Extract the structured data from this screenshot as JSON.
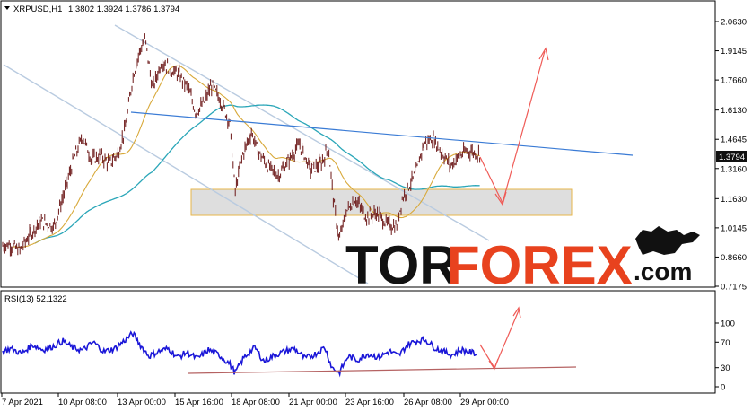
{
  "header": {
    "symbol": "XRPUSD,H1",
    "ohlc": "1.3802 1.3924 1.3786 1.3794"
  },
  "price_axis": {
    "ticks": [
      {
        "label": "2.0630",
        "value": 2.063
      },
      {
        "label": "1.9145",
        "value": 1.9145
      },
      {
        "label": "1.7660",
        "value": 1.766
      },
      {
        "label": "1.6130",
        "value": 1.613
      },
      {
        "label": "1.4645",
        "value": 1.4645
      },
      {
        "label": "1.3160",
        "value": 1.316
      },
      {
        "label": "1.1630",
        "value": 1.163
      },
      {
        "label": "1.0145",
        "value": 1.0145
      },
      {
        "label": "0.8660",
        "value": 0.866
      },
      {
        "label": "0.7175",
        "value": 0.7175
      }
    ],
    "current_price": "1.3794",
    "current_value": 1.3794
  },
  "rsi": {
    "label": "RSI(13) 52.1322",
    "ticks": [
      {
        "label": "100",
        "value": 100
      },
      {
        "label": "70",
        "value": 70
      },
      {
        "label": "30",
        "value": 30
      },
      {
        "label": "0",
        "value": 0
      }
    ]
  },
  "time_axis": [
    "7 Apr 2021",
    "10 Apr 08:00",
    "13 Apr 00:00",
    "15 Apr 16:00",
    "18 Apr 08:00",
    "21 Apr 00:00",
    "23 Apr 16:00",
    "26 Apr 08:00",
    "29 Apr 00:00"
  ],
  "watermark": {
    "part1": "TOR",
    "part2": "FOREX",
    "part3": ".com"
  },
  "colors": {
    "candle_up": "#6b1616",
    "candle_down": "#6b1616",
    "ma_fast": "#d8a93a",
    "ma_slow": "#2aa6b8",
    "trendline": "#3a7bd5",
    "channel": "#b9cbe0",
    "forecast_arrow": "#ef5a56",
    "rsi_line": "#1a16d8",
    "rsi_trendline": "#b56262",
    "support_zone": "#d8d8d8",
    "support_border": "#e7b64a",
    "price_tag_bg": "#111111",
    "axis_text": "#000000",
    "background": "#ffffff"
  },
  "chart_data": {
    "type": "candlestick",
    "price_range": [
      0.7175,
      2.063
    ],
    "rsi_range": [
      0,
      100
    ],
    "price_path": [
      [
        0,
        0.92
      ],
      [
        10,
        0.93
      ],
      [
        22,
        0.9
      ],
      [
        32,
        0.97
      ],
      [
        45,
        1.05
      ],
      [
        60,
        1.02
      ],
      [
        72,
        1.2
      ],
      [
        82,
        1.36
      ],
      [
        92,
        1.48
      ],
      [
        102,
        1.36
      ],
      [
        112,
        1.38
      ],
      [
        122,
        1.34
      ],
      [
        132,
        1.4
      ],
      [
        140,
        1.53
      ],
      [
        148,
        1.78
      ],
      [
        156,
        1.92
      ],
      [
        162,
        1.97
      ],
      [
        170,
        1.72
      ],
      [
        180,
        1.86
      ],
      [
        190,
        1.82
      ],
      [
        200,
        1.79
      ],
      [
        210,
        1.72
      ],
      [
        218,
        1.6
      ],
      [
        226,
        1.64
      ],
      [
        236,
        1.74
      ],
      [
        246,
        1.66
      ],
      [
        256,
        1.55
      ],
      [
        262,
        1.2
      ],
      [
        270,
        1.38
      ],
      [
        280,
        1.5
      ],
      [
        288,
        1.4
      ],
      [
        298,
        1.33
      ],
      [
        310,
        1.28
      ],
      [
        322,
        1.36
      ],
      [
        334,
        1.44
      ],
      [
        346,
        1.31
      ],
      [
        358,
        1.34
      ],
      [
        366,
        1.42
      ],
      [
        372,
        1.14
      ],
      [
        378,
        0.95
      ],
      [
        386,
        1.1
      ],
      [
        396,
        1.16
      ],
      [
        408,
        1.07
      ],
      [
        420,
        1.09
      ],
      [
        432,
        1.03
      ],
      [
        442,
        1.02
      ],
      [
        448,
        1.16
      ],
      [
        456,
        1.23
      ],
      [
        464,
        1.3
      ],
      [
        472,
        1.44
      ],
      [
        482,
        1.47
      ],
      [
        492,
        1.4
      ],
      [
        502,
        1.33
      ],
      [
        512,
        1.38
      ],
      [
        522,
        1.41
      ],
      [
        532,
        1.39
      ]
    ],
    "rsi_path": [
      [
        0,
        54
      ],
      [
        12,
        60
      ],
      [
        24,
        52
      ],
      [
        36,
        66
      ],
      [
        48,
        58
      ],
      [
        60,
        64
      ],
      [
        70,
        72
      ],
      [
        80,
        62
      ],
      [
        92,
        57
      ],
      [
        104,
        70
      ],
      [
        116,
        55
      ],
      [
        128,
        60
      ],
      [
        140,
        74
      ],
      [
        148,
        84
      ],
      [
        156,
        66
      ],
      [
        166,
        48
      ],
      [
        176,
        55
      ],
      [
        188,
        60
      ],
      [
        198,
        46
      ],
      [
        208,
        54
      ],
      [
        220,
        44
      ],
      [
        232,
        58
      ],
      [
        244,
        50
      ],
      [
        256,
        36
      ],
      [
        262,
        22
      ],
      [
        272,
        46
      ],
      [
        284,
        62
      ],
      [
        294,
        40
      ],
      [
        304,
        48
      ],
      [
        316,
        55
      ],
      [
        328,
        60
      ],
      [
        340,
        44
      ],
      [
        352,
        52
      ],
      [
        362,
        62
      ],
      [
        370,
        30
      ],
      [
        378,
        22
      ],
      [
        388,
        48
      ],
      [
        398,
        42
      ],
      [
        410,
        52
      ],
      [
        422,
        46
      ],
      [
        434,
        56
      ],
      [
        444,
        48
      ],
      [
        454,
        66
      ],
      [
        464,
        72
      ],
      [
        474,
        74
      ],
      [
        484,
        62
      ],
      [
        494,
        55
      ],
      [
        504,
        50
      ],
      [
        514,
        58
      ],
      [
        524,
        54
      ],
      [
        532,
        52
      ]
    ]
  }
}
